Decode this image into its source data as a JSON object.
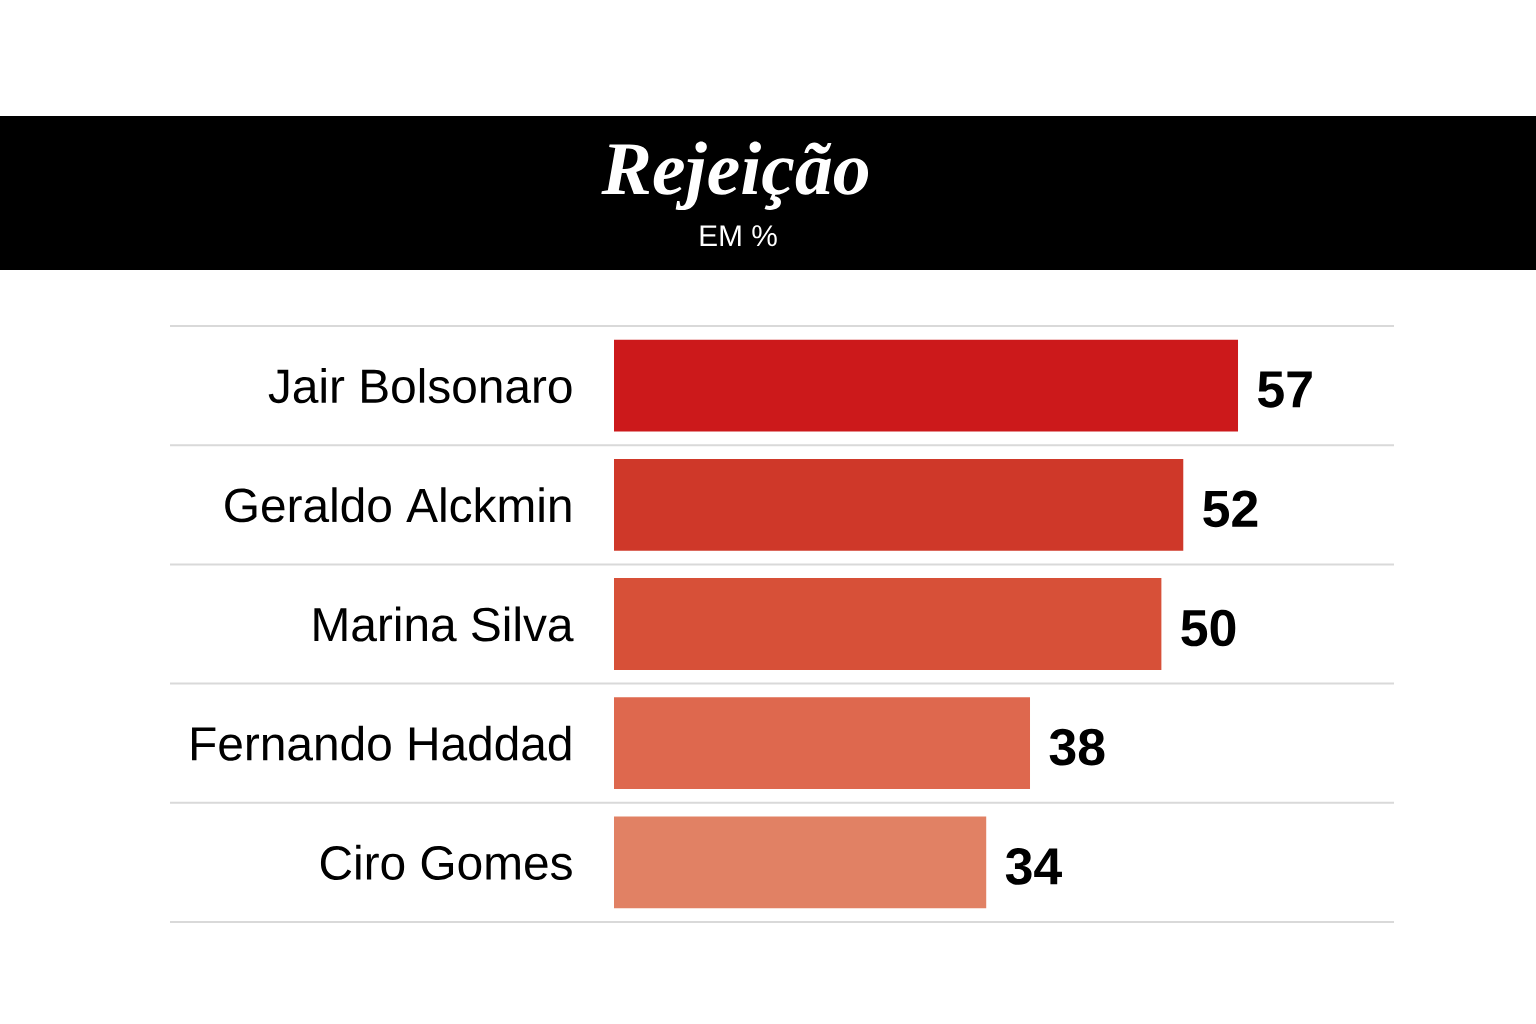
{
  "chart_data": {
    "type": "bar",
    "title": "Rejeição",
    "subtitle": "EM %",
    "orientation": "horizontal",
    "categories": [
      "Jair Bolsonaro",
      "Geraldo Alckmin",
      "Marina Silva",
      "Fernando Haddad",
      "Ciro Gomes"
    ],
    "values": [
      57,
      52,
      50,
      38,
      34
    ],
    "colors": [
      "#cc191b",
      "#cf3829",
      "#d75038",
      "#de684e",
      "#e18164"
    ],
    "data_labels": true,
    "grid": "y"
  }
}
